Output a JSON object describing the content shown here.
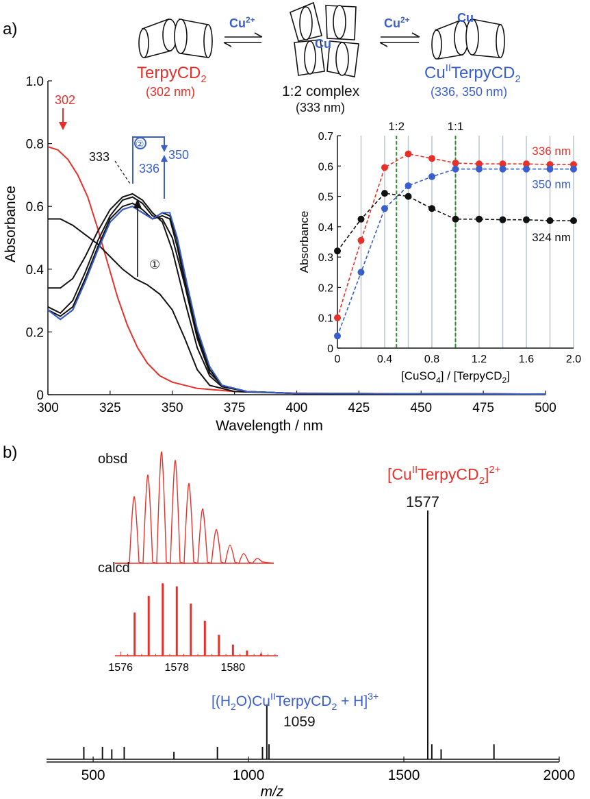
{
  "panel_a": {
    "label": "a)",
    "scheme": {
      "arrow1_label": "Cu",
      "arrow1_sup": "2+",
      "arrow2_label": "Cu",
      "arrow2_sup": "2+",
      "left_name_base": "TerpyCD",
      "left_name_sub": "2",
      "left_wavelength": "(302 nm)",
      "mid_cu": "Cu",
      "mid_name": "1:2 complex",
      "mid_wavelength": "(333 nm)",
      "right_cu": "Cu",
      "right_name_base": "Cu",
      "right_name_sup": "II",
      "right_name_rest": "TerpyCD",
      "right_name_sub": "2",
      "right_wavelength": "(336, 350 nm)"
    },
    "annotations": {
      "a302": "302",
      "a333": "333",
      "a336": "336",
      "a350": "350",
      "step1": "①",
      "step2": "②"
    }
  },
  "panel_b": {
    "label": "b)",
    "obsd_label": "obsd",
    "calcd_label": "calcd",
    "inset_ticks": [
      "1576",
      "1578",
      "1580"
    ],
    "peak1577_label_base": "[Cu",
    "peak1577_label_sup": "II",
    "peak1577_label_rest": "TerpyCD",
    "peak1577_label_sub": "2",
    "peak1577_label_end": "]",
    "peak1577_label_charge": "2+",
    "peak1577_value": "1577",
    "peak1059_label_a": "[(H",
    "peak1059_label_sub1": "2",
    "peak1059_label_b": "O)Cu",
    "peak1059_label_sup": "II",
    "peak1059_label_c": "TerpyCD",
    "peak1059_label_sub2": "2",
    "peak1059_label_d": " + H]",
    "peak1059_label_charge": "3+",
    "peak1059_value": "1059"
  },
  "colors": {
    "red": "#e8302a",
    "blue": "#3a5fcd",
    "black": "#111111",
    "green": "#2e8b2e",
    "grid": "#b9c6d2"
  },
  "chart_data": [
    {
      "type": "line",
      "xlabel": "Wavelength / nm",
      "ylabel": "Absorbance",
      "xlim": [
        300,
        500
      ],
      "ylim": [
        0,
        1.0
      ],
      "x_ticks": [
        "300",
        "325",
        "350",
        "375",
        "400",
        "425",
        "450",
        "475",
        "500"
      ],
      "y_ticks": [
        "0",
        "0.2",
        "0.4",
        "0.6",
        "0.8",
        "1.0"
      ],
      "series": [
        {
          "color": "red",
          "points": [
            [
              300,
              0.79
            ],
            [
              304,
              0.78
            ],
            [
              308,
              0.75
            ],
            [
              312,
              0.7
            ],
            [
              316,
              0.63
            ],
            [
              320,
              0.53
            ],
            [
              324,
              0.42
            ],
            [
              328,
              0.31
            ],
            [
              332,
              0.22
            ],
            [
              336,
              0.15
            ],
            [
              340,
              0.1
            ],
            [
              345,
              0.06
            ],
            [
              350,
              0.04
            ],
            [
              360,
              0.02
            ],
            [
              375,
              0.01
            ],
            [
              400,
              0.005
            ],
            [
              450,
              0.003
            ],
            [
              500,
              0.002
            ]
          ]
        },
        {
          "color": "black",
          "points": [
            [
              300,
              0.56
            ],
            [
              305,
              0.56
            ],
            [
              310,
              0.54
            ],
            [
              315,
              0.51
            ],
            [
              320,
              0.48
            ],
            [
              325,
              0.44
            ],
            [
              330,
              0.4
            ],
            [
              335,
              0.37
            ],
            [
              340,
              0.35
            ],
            [
              345,
              0.32
            ],
            [
              350,
              0.27
            ],
            [
              355,
              0.18
            ],
            [
              360,
              0.08
            ],
            [
              365,
              0.03
            ],
            [
              375,
              0.01
            ],
            [
              400,
              0.004
            ],
            [
              500,
              0.002
            ]
          ]
        },
        {
          "color": "black",
          "points": [
            [
              300,
              0.34
            ],
            [
              305,
              0.34
            ],
            [
              310,
              0.37
            ],
            [
              315,
              0.44
            ],
            [
              320,
              0.52
            ],
            [
              325,
              0.59
            ],
            [
              330,
              0.63
            ],
            [
              334,
              0.64
            ],
            [
              338,
              0.62
            ],
            [
              342,
              0.58
            ],
            [
              346,
              0.55
            ],
            [
              350,
              0.46
            ],
            [
              355,
              0.3
            ],
            [
              360,
              0.15
            ],
            [
              365,
              0.06
            ],
            [
              370,
              0.025
            ],
            [
              380,
              0.01
            ],
            [
              400,
              0.004
            ],
            [
              500,
              0.002
            ]
          ]
        },
        {
          "color": "black",
          "points": [
            [
              300,
              0.28
            ],
            [
              305,
              0.26
            ],
            [
              310,
              0.3
            ],
            [
              315,
              0.39
            ],
            [
              320,
              0.49
            ],
            [
              325,
              0.57
            ],
            [
              330,
              0.62
            ],
            [
              334,
              0.63
            ],
            [
              338,
              0.61
            ],
            [
              342,
              0.57
            ],
            [
              346,
              0.56
            ],
            [
              350,
              0.5
            ],
            [
              355,
              0.35
            ],
            [
              360,
              0.18
            ],
            [
              365,
              0.07
            ],
            [
              370,
              0.03
            ],
            [
              380,
              0.01
            ],
            [
              400,
              0.004
            ],
            [
              500,
              0.002
            ]
          ]
        },
        {
          "color": "black",
          "points": [
            [
              300,
              0.27
            ],
            [
              305,
              0.25
            ],
            [
              310,
              0.28
            ],
            [
              315,
              0.37
            ],
            [
              320,
              0.47
            ],
            [
              325,
              0.56
            ],
            [
              330,
              0.6
            ],
            [
              334,
              0.61
            ],
            [
              338,
              0.59
            ],
            [
              342,
              0.56
            ],
            [
              346,
              0.57
            ],
            [
              349,
              0.56
            ],
            [
              352,
              0.47
            ],
            [
              356,
              0.32
            ],
            [
              360,
              0.19
            ],
            [
              365,
              0.08
            ],
            [
              370,
              0.03
            ],
            [
              380,
              0.01
            ],
            [
              400,
              0.004
            ],
            [
              500,
              0.002
            ]
          ]
        },
        {
          "color": "black",
          "points": [
            [
              300,
              0.27
            ],
            [
              305,
              0.24
            ],
            [
              310,
              0.27
            ],
            [
              315,
              0.36
            ],
            [
              320,
              0.46
            ],
            [
              325,
              0.55
            ],
            [
              330,
              0.59
            ],
            [
              334,
              0.6
            ],
            [
              338,
              0.58
            ],
            [
              342,
              0.56
            ],
            [
              346,
              0.58
            ],
            [
              349,
              0.57
            ],
            [
              352,
              0.49
            ],
            [
              356,
              0.34
            ],
            [
              360,
              0.2
            ],
            [
              365,
              0.08
            ],
            [
              370,
              0.03
            ],
            [
              380,
              0.01
            ],
            [
              400,
              0.004
            ],
            [
              500,
              0.002
            ]
          ]
        },
        {
          "color": "blue",
          "points": [
            [
              300,
              0.27
            ],
            [
              305,
              0.24
            ],
            [
              310,
              0.27
            ],
            [
              315,
              0.36
            ],
            [
              320,
              0.46
            ],
            [
              325,
              0.55
            ],
            [
              330,
              0.59
            ],
            [
              334,
              0.6
            ],
            [
              338,
              0.58
            ],
            [
              342,
              0.56
            ],
            [
              346,
              0.58
            ],
            [
              349,
              0.58
            ],
            [
              352,
              0.5
            ],
            [
              356,
              0.35
            ],
            [
              360,
              0.21
            ],
            [
              365,
              0.09
            ],
            [
              370,
              0.03
            ],
            [
              380,
              0.01
            ],
            [
              400,
              0.004
            ],
            [
              500,
              0.002
            ]
          ]
        }
      ]
    },
    {
      "type": "scatter",
      "xlabel_base": "[CuSO",
      "xlabel_sub": "4",
      "xlabel_mid": "] / [TerpyCD",
      "xlabel_sub2": "2",
      "xlabel_end": "]",
      "ylabel": "Absorbance",
      "xlim": [
        0,
        2.0
      ],
      "ylim": [
        0,
        0.7
      ],
      "x_ticks": [
        "0",
        "0.4",
        "0.8",
        "1.2",
        "1.6",
        "2.0"
      ],
      "y_ticks": [
        "0",
        "0.1",
        "0.2",
        "0.3",
        "0.4",
        "0.5",
        "0.6",
        "0.7"
      ],
      "grid": "vertical",
      "markers_vertical": [
        {
          "x": 0.5,
          "label": "1:2"
        },
        {
          "x": 1.0,
          "label": "1:1"
        }
      ],
      "x": [
        0,
        0.2,
        0.4,
        0.6,
        0.8,
        1.0,
        1.2,
        1.4,
        1.6,
        1.8,
        2.0
      ],
      "series": [
        {
          "name": "336 nm",
          "color": "red",
          "values": [
            0.1,
            0.355,
            0.595,
            0.64,
            0.625,
            0.61,
            0.607,
            0.607,
            0.607,
            0.605,
            0.605
          ]
        },
        {
          "name": "350 nm",
          "color": "blue",
          "values": [
            0.04,
            0.25,
            0.46,
            0.535,
            0.565,
            0.59,
            0.59,
            0.59,
            0.59,
            0.59,
            0.59
          ]
        },
        {
          "name": "324 nm",
          "color": "black",
          "values": [
            0.32,
            0.425,
            0.51,
            0.5,
            0.46,
            0.425,
            0.425,
            0.423,
            0.423,
            0.42,
            0.42
          ]
        }
      ]
    },
    {
      "type": "line",
      "xlabel": "m/z",
      "xlim": [
        350,
        2000
      ],
      "x_ticks": [
        "500",
        "1000",
        "1500",
        "2000"
      ],
      "peaks": [
        {
          "x": 1577,
          "height": 1.0
        },
        {
          "x": 1059,
          "height": 0.22
        },
        {
          "x": 470,
          "height": 0.05
        },
        {
          "x": 530,
          "height": 0.05
        },
        {
          "x": 560,
          "height": 0.04
        },
        {
          "x": 600,
          "height": 0.05
        },
        {
          "x": 760,
          "height": 0.03
        },
        {
          "x": 900,
          "height": 0.05
        },
        {
          "x": 1045,
          "height": 0.05
        },
        {
          "x": 1066,
          "height": 0.06
        },
        {
          "x": 1590,
          "height": 0.06
        },
        {
          "x": 1620,
          "height": 0.04
        },
        {
          "x": 1790,
          "height": 0.06
        }
      ]
    },
    {
      "type": "line",
      "name_label": "obsd",
      "xlim": [
        1575.8,
        1581.6
      ],
      "peaks": [
        [
          1576.5,
          0.55
        ],
        [
          1577.0,
          0.73
        ],
        [
          1577.5,
          0.92
        ],
        [
          1578.0,
          0.85
        ],
        [
          1578.5,
          0.66
        ],
        [
          1579.0,
          0.45
        ],
        [
          1579.5,
          0.28
        ],
        [
          1580.0,
          0.15
        ],
        [
          1580.5,
          0.08
        ],
        [
          1581.0,
          0.04
        ]
      ]
    },
    {
      "type": "bar",
      "name_label": "calcd",
      "xlim": [
        1575.8,
        1581.6
      ],
      "peaks": [
        [
          1576.5,
          0.58
        ],
        [
          1577.0,
          0.8
        ],
        [
          1577.5,
          0.97
        ],
        [
          1578.0,
          0.93
        ],
        [
          1578.5,
          0.7
        ],
        [
          1579.0,
          0.47
        ],
        [
          1579.5,
          0.28
        ],
        [
          1580.0,
          0.15
        ],
        [
          1580.5,
          0.07
        ],
        [
          1581.0,
          0.03
        ]
      ]
    }
  ]
}
